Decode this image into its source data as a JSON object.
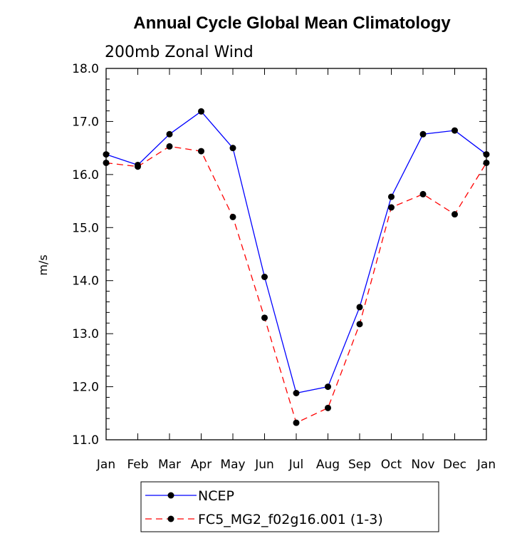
{
  "chart_data": {
    "type": "line",
    "title": "Annual Cycle Global Mean Climatology",
    "subtitle": "200mb Zonal Wind",
    "xlabel": "",
    "ylabel": "m/s",
    "categories": [
      "Jan",
      "Feb",
      "Mar",
      "Apr",
      "May",
      "Jun",
      "Jul",
      "Aug",
      "Sep",
      "Oct",
      "Nov",
      "Dec",
      "Jan"
    ],
    "ylim": [
      11.0,
      18.0
    ],
    "yticks": [
      "11.0",
      "12.0",
      "13.0",
      "14.0",
      "15.0",
      "16.0",
      "17.0",
      "18.0"
    ],
    "grid": false,
    "legend_position": "bottom",
    "series": [
      {
        "name": "NCEP",
        "color": "#0000ff",
        "dash": "solid",
        "values": [
          16.38,
          16.18,
          16.76,
          17.19,
          16.5,
          14.07,
          11.88,
          12.0,
          13.5,
          15.58,
          16.76,
          16.83,
          16.38
        ]
      },
      {
        "name": "FC5_MG2_f02g16.001 (1-3)",
        "color": "#ff0000",
        "dash": "dashed",
        "values": [
          16.22,
          16.15,
          16.53,
          16.44,
          15.2,
          13.3,
          11.32,
          11.6,
          13.18,
          15.38,
          15.63,
          15.25,
          16.22
        ]
      }
    ]
  }
}
